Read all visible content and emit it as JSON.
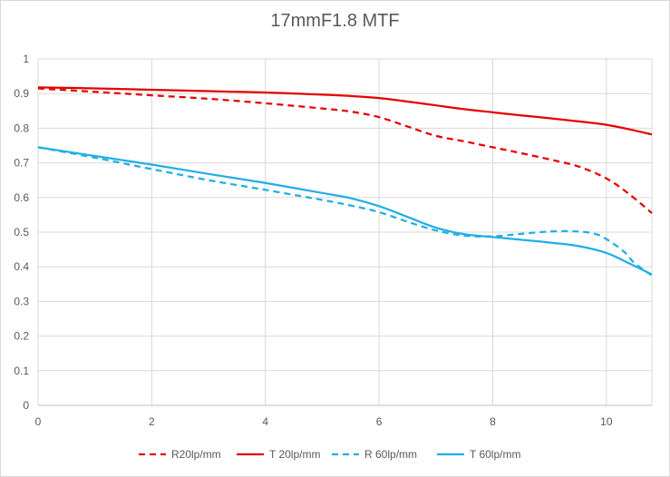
{
  "chart_data": {
    "type": "line",
    "title": "17mmF1.8  MTF",
    "xlabel": "",
    "ylabel": "",
    "xlim": [
      0,
      10.8
    ],
    "ylim": [
      0,
      1
    ],
    "x_ticks": [
      0,
      2,
      4,
      6,
      8,
      10
    ],
    "x_tick_labels": [
      "0",
      "2",
      "4",
      "6",
      "8",
      "10"
    ],
    "y_ticks": [
      0,
      0.1,
      0.2,
      0.3,
      0.4,
      0.5,
      0.6,
      0.7,
      0.8,
      0.9,
      1
    ],
    "y_tick_labels": [
      "0",
      "0.1",
      "0.2",
      "0.3",
      "0.4",
      "0.5",
      "0.6",
      "0.7",
      "0.8",
      "0.9",
      "1"
    ],
    "grid": "horizontal",
    "legend_position": "bottom",
    "series": [
      {
        "name": "R20lp/mm",
        "color": "#e60000",
        "dash": "dashed",
        "x": [
          0,
          1,
          2,
          3,
          4,
          5,
          5.5,
          6,
          6.5,
          7,
          7.5,
          8,
          8.5,
          9,
          9.5,
          10,
          10.4,
          10.8
        ],
        "y": [
          0.915,
          0.905,
          0.895,
          0.885,
          0.872,
          0.857,
          0.848,
          0.832,
          0.805,
          0.778,
          0.762,
          0.745,
          0.728,
          0.71,
          0.69,
          0.655,
          0.61,
          0.555
        ]
      },
      {
        "name": "T 20lp/mm",
        "color": "#e60000",
        "dash": "solid",
        "x": [
          0,
          1,
          2,
          3,
          4,
          5,
          5.5,
          6,
          6.5,
          7,
          7.5,
          8,
          8.5,
          9,
          9.5,
          10,
          10.4,
          10.8
        ],
        "y": [
          0.918,
          0.915,
          0.911,
          0.907,
          0.903,
          0.897,
          0.893,
          0.887,
          0.877,
          0.866,
          0.855,
          0.846,
          0.837,
          0.829,
          0.82,
          0.81,
          0.797,
          0.782
        ]
      },
      {
        "name": "R 60lp/mm",
        "color": "#22aee6",
        "dash": "dashed",
        "x": [
          0,
          1,
          2,
          3,
          4,
          5,
          5.5,
          6,
          6.5,
          7,
          7.5,
          8,
          8.5,
          9,
          9.5,
          9.8,
          10,
          10.3,
          10.5,
          10.8
        ],
        "y": [
          0.745,
          0.715,
          0.682,
          0.65,
          0.622,
          0.593,
          0.577,
          0.558,
          0.53,
          0.505,
          0.49,
          0.488,
          0.495,
          0.502,
          0.502,
          0.495,
          0.48,
          0.445,
          0.41,
          0.375
        ]
      },
      {
        "name": "T 60lp/mm",
        "color": "#22aee6",
        "dash": "solid",
        "x": [
          0,
          1,
          2,
          3,
          4,
          5,
          5.5,
          6,
          6.5,
          7,
          7.5,
          8,
          8.5,
          9,
          9.5,
          10,
          10.4,
          10.8
        ],
        "y": [
          0.745,
          0.72,
          0.695,
          0.668,
          0.642,
          0.613,
          0.598,
          0.575,
          0.544,
          0.513,
          0.494,
          0.486,
          0.478,
          0.47,
          0.46,
          0.44,
          0.41,
          0.378
        ]
      }
    ]
  }
}
